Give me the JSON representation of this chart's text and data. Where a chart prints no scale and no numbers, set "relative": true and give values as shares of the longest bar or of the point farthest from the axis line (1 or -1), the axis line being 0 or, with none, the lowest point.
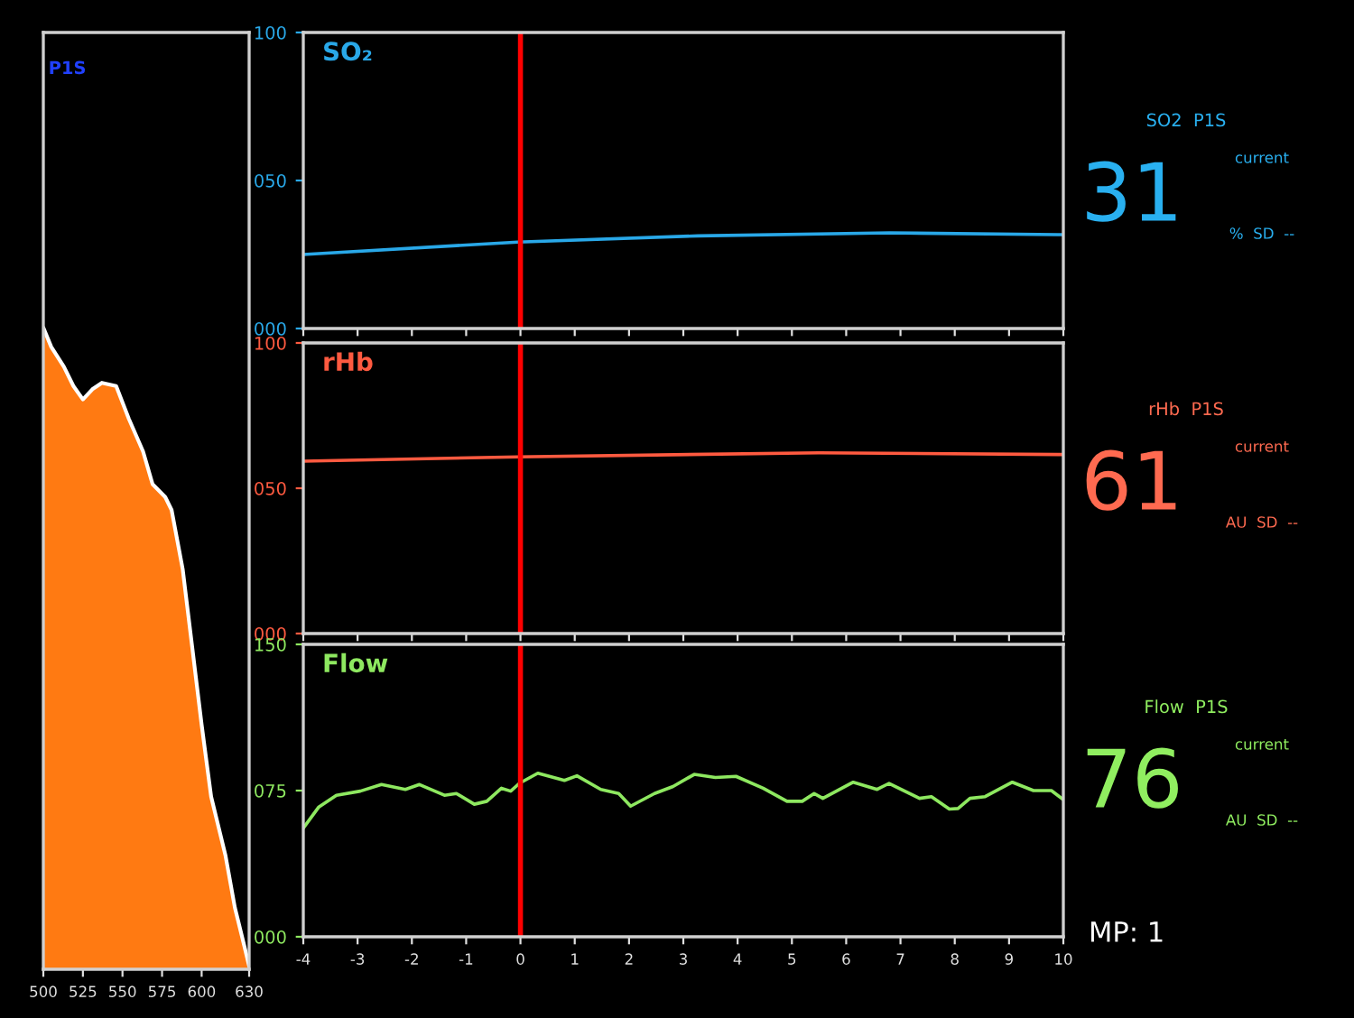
{
  "chart_data": [
    {
      "type": "area",
      "title": "P1S",
      "relative": true,
      "xlim": [
        500,
        630
      ],
      "xticks": [
        500,
        525,
        550,
        575,
        600,
        630
      ],
      "tick_labels": "x",
      "series": [
        {
          "color": "#ff7a12",
          "x": [
            500,
            505,
            513,
            519,
            525,
            531,
            537,
            546,
            554,
            563,
            569,
            577,
            581,
            588,
            594,
            600,
            606,
            615,
            621,
            627,
            630
          ],
          "values": [
            1.0,
            0.97,
            0.939,
            0.909,
            0.888,
            0.904,
            0.914,
            0.909,
            0.858,
            0.807,
            0.756,
            0.736,
            0.716,
            0.624,
            0.503,
            0.381,
            0.269,
            0.178,
            0.096,
            0.036,
            0.005
          ]
        }
      ]
    },
    {
      "type": "line",
      "title": "SO₂",
      "xlim": [
        -4,
        10
      ],
      "xticks": [
        -4,
        -3,
        -2,
        -1,
        0,
        1,
        2,
        3,
        4,
        5,
        6,
        7,
        8,
        9,
        10
      ],
      "ylim": [
        0,
        100
      ],
      "yticks": [
        {
          "value": 0,
          "label": "000"
        },
        {
          "value": 50,
          "label": "050"
        },
        100
      ],
      "tick_labels": "y",
      "ref_lines": [
        {
          "axis": "x",
          "value": 0,
          "color": "#ff0000"
        }
      ],
      "series": [
        {
          "color": "#29a8e8",
          "x": [
            -4,
            -0.05,
            3.27,
            6.8,
            9.9,
            10
          ],
          "values": [
            25,
            29.2,
            31.3,
            32.3,
            31.7,
            31.7
          ]
        }
      ]
    },
    {
      "type": "line",
      "title": "rHb",
      "xlim": [
        -4,
        10
      ],
      "xticks": [
        -4,
        -3,
        -2,
        -1,
        0,
        1,
        2,
        3,
        4,
        5,
        6,
        7,
        8,
        9,
        10
      ],
      "ylim": [
        0,
        100
      ],
      "yticks": [
        {
          "value": 0,
          "label": "000"
        },
        {
          "value": 50,
          "label": "050"
        },
        100
      ],
      "tick_labels": "y",
      "ref_lines": [
        {
          "axis": "x",
          "value": 0,
          "color": "#ff0000"
        }
      ],
      "series": [
        {
          "color": "#ff5a40",
          "x": [
            -4,
            -0.05,
            5.5,
            9.9,
            10
          ],
          "values": [
            59.3,
            60.8,
            62.2,
            61.6,
            61.6
          ]
        }
      ]
    },
    {
      "type": "line",
      "title": "Flow",
      "xlim": [
        -4,
        10
      ],
      "xticks": [
        -4,
        -3,
        -2,
        -1,
        0,
        1,
        2,
        3,
        4,
        5,
        6,
        7,
        8,
        9,
        10
      ],
      "ylim": [
        0,
        150
      ],
      "yticks": [
        {
          "value": 0,
          "label": "000"
        },
        {
          "value": 75,
          "label": "075"
        },
        150
      ],
      "ref_lines": [
        {
          "axis": "x",
          "value": 0,
          "color": "#ff0000"
        }
      ],
      "series": [
        {
          "color": "#8ee860",
          "x": [
            -4,
            -3.72,
            -3.39,
            -2.95,
            -2.56,
            -2.12,
            -1.86,
            -1.4,
            -1.18,
            -0.85,
            -0.62,
            -0.35,
            -0.18,
            -0.02,
            0.32,
            0.81,
            1.04,
            1.48,
            1.81,
            2.03,
            2.47,
            2.81,
            3.2,
            3.59,
            3.97,
            4.47,
            4.91,
            5.19,
            5.41,
            5.57,
            6.13,
            6.57,
            6.79,
            7.35,
            7.57,
            7.9,
            8.06,
            8.28,
            8.56,
            9.06,
            9.45,
            9.78,
            10
          ],
          "values": [
            55.7,
            66.4,
            72.6,
            74.7,
            78.1,
            75.6,
            78.1,
            72.6,
            73.5,
            68.0,
            69.5,
            76.2,
            74.7,
            78.7,
            83.9,
            80.2,
            82.6,
            75.6,
            73.5,
            67.0,
            73.5,
            77.1,
            83.3,
            81.7,
            82.3,
            76.2,
            69.5,
            69.5,
            73.5,
            71.0,
            79.3,
            75.6,
            78.7,
            71.0,
            71.9,
            65.5,
            65.8,
            71.0,
            71.9,
            79.3,
            75.0,
            75.0,
            70.4
          ]
        }
      ]
    },
    {
      "type": "other",
      "annotations": [
        "SO2  P1S",
        "31",
        "current",
        "%  SD  --"
      ],
      "series": [
        {
          "color": "#29b0f0"
        }
      ]
    },
    {
      "type": "other",
      "annotations": [
        "rHb  P1S",
        "61",
        "current",
        "AU  SD  --"
      ],
      "series": [
        {
          "color": "#ff6a50"
        }
      ]
    },
    {
      "type": "other",
      "annotations": [
        "Flow  P1S",
        "76",
        "current",
        "AU  SD  --"
      ],
      "series": [
        {
          "color": "#90ee60"
        }
      ]
    },
    {
      "type": "other",
      "annotations": [
        "MP: 1"
      ],
      "series": [
        {
          "color": "#ffffff"
        }
      ]
    }
  ]
}
